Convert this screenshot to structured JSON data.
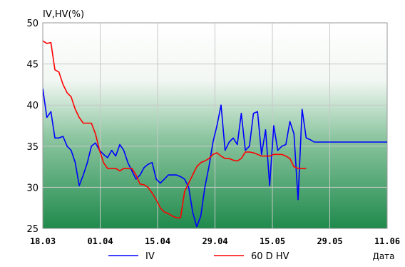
{
  "chart_data": {
    "type": "line",
    "ylabel": "IV,HV(%)",
    "xlabel": "Дата",
    "ylim": [
      25,
      50
    ],
    "y_ticks": [
      25,
      30,
      35,
      40,
      45,
      50
    ],
    "x_tick_labels": [
      "18.03",
      "01.04",
      "15.04",
      "29.04",
      "15.05",
      "29.05",
      "11.06"
    ],
    "x_range_days": [
      0,
      85
    ],
    "grid": true,
    "background": "vertical gradient white to green",
    "legend_position": "bottom",
    "series": [
      {
        "name": "IV",
        "color": "#0000ff",
        "x": [
          0,
          1,
          2,
          3,
          4,
          5,
          6,
          7,
          8,
          9,
          10,
          11,
          12,
          13,
          14,
          15,
          16,
          17,
          18,
          19,
          20,
          21,
          22,
          23,
          24,
          25,
          26,
          27,
          28,
          29,
          30,
          31,
          32,
          33,
          34,
          35,
          36,
          37,
          38,
          39,
          40,
          41,
          42,
          43,
          44,
          45,
          46,
          47,
          48,
          49,
          50,
          51,
          52,
          53,
          54,
          55,
          56,
          57,
          58,
          59,
          60,
          61,
          62,
          63,
          64,
          65,
          66,
          67,
          68,
          69,
          70,
          71,
          72,
          73,
          74,
          75,
          76,
          77,
          78,
          79,
          80,
          81,
          82,
          83,
          84,
          85
        ],
        "values": [
          42.0,
          38.5,
          39.2,
          36.0,
          36.0,
          36.2,
          35.0,
          34.5,
          33.0,
          30.2,
          31.5,
          33.0,
          35.0,
          35.4,
          34.5,
          34.0,
          33.6,
          34.5,
          33.8,
          35.2,
          34.5,
          33.0,
          32.0,
          31.0,
          31.5,
          32.4,
          32.8,
          33.0,
          31.0,
          30.5,
          31.0,
          31.5,
          31.5,
          31.5,
          31.3,
          31.0,
          30.0,
          27.0,
          25.2,
          26.5,
          30.0,
          32.5,
          35.5,
          37.5,
          40.0,
          34.5,
          35.5,
          36.0,
          35.2,
          39.0,
          34.5,
          35.0,
          39.0,
          39.2,
          34.0,
          37.0,
          30.2,
          37.5,
          34.5,
          35.0,
          35.2,
          38.0,
          36.5,
          28.5,
          39.5,
          36.0,
          35.8,
          35.5,
          35.5,
          35.5,
          35.5,
          35.5,
          35.5,
          35.5,
          35.5,
          35.5,
          35.5,
          35.5,
          35.5,
          35.5,
          35.5,
          35.5,
          35.5,
          35.5,
          35.5,
          35.5
        ]
      },
      {
        "name": "60 D HV",
        "color": "#ff0000",
        "x": [
          0,
          1,
          2,
          3,
          4,
          5,
          6,
          7,
          8,
          9,
          10,
          11,
          12,
          13,
          14,
          15,
          16,
          17,
          18,
          19,
          20,
          21,
          22,
          23,
          24,
          25,
          26,
          27,
          28,
          29,
          30,
          31,
          32,
          33,
          34,
          35,
          36,
          37,
          38,
          39,
          40,
          41,
          42,
          43,
          44,
          45,
          46,
          47,
          48,
          49,
          50,
          51,
          52,
          53,
          54,
          55,
          56,
          57,
          58,
          59,
          60,
          61,
          62,
          63,
          64,
          65
        ],
        "values": [
          47.8,
          47.5,
          47.6,
          44.3,
          44.0,
          42.5,
          41.5,
          41.0,
          39.5,
          38.5,
          37.8,
          37.8,
          37.8,
          36.5,
          34.5,
          33.0,
          32.3,
          32.3,
          32.3,
          32.0,
          32.3,
          32.3,
          32.3,
          31.5,
          30.4,
          30.3,
          30.0,
          29.3,
          28.5,
          27.5,
          27.0,
          26.8,
          26.5,
          26.3,
          26.3,
          29.5,
          30.5,
          31.5,
          32.5,
          33.0,
          33.2,
          33.5,
          34.0,
          34.2,
          33.8,
          33.5,
          33.5,
          33.3,
          33.2,
          33.5,
          34.3,
          34.3,
          34.2,
          34.0,
          33.8,
          33.8,
          33.8,
          34.0,
          34.0,
          34.0,
          33.8,
          33.5,
          32.5,
          32.3,
          32.3,
          32.3
        ]
      }
    ]
  }
}
